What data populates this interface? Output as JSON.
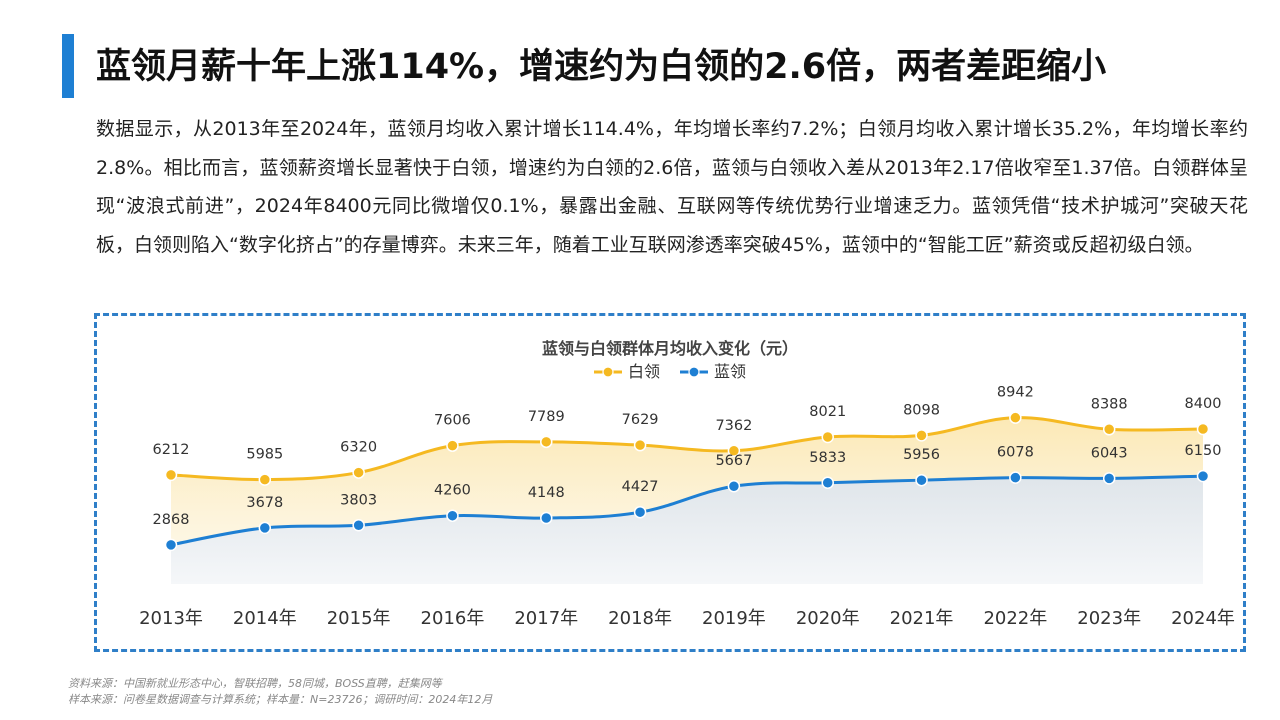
{
  "header": {
    "title": "蓝领月薪十年上涨114%，增速约为白领的2.6倍，两者差距缩小"
  },
  "body": {
    "paragraph": "数据显示，从2013年至2024年，蓝领月均收入累计增长114.4%，年均增长率约7.2%；白领月均收入累计增长35.2%，年均增长率约2.8%。相比而言，蓝领薪资增长显著快于白领，增速约为白领的2.6倍，蓝领与白领收入差从2013年2.17倍收窄至1.37倍。白领群体呈现“波浪式前进”，2024年8400元同比微增仅0.1%，暴露出金融、互联网等传统优势行业增速乏力。蓝领凭借“技术护城河”突破天花板，白领则陷入“数字化挤占”的存量博弈。未来三年，随着工业互联网渗透率突破45%，蓝领中的“智能工匠”薪资或反超初级白领。"
  },
  "chart_data": {
    "type": "line",
    "title": "蓝领与白领群体月均收入变化（元）",
    "categories": [
      "2013年",
      "2014年",
      "2015年",
      "2016年",
      "2017年",
      "2018年",
      "2019年",
      "2020年",
      "2021年",
      "2022年",
      "2023年",
      "2024年"
    ],
    "series": [
      {
        "name": "白领",
        "color": "#f5b921",
        "values": [
          6212,
          5985,
          6320,
          7606,
          7789,
          7629,
          7362,
          8021,
          8098,
          8942,
          8388,
          8400
        ]
      },
      {
        "name": "蓝领",
        "color": "#1e7fd3",
        "values": [
          2868,
          3678,
          3803,
          4260,
          4148,
          4427,
          5667,
          5833,
          5956,
          6078,
          6043,
          6150
        ]
      }
    ],
    "legend": "top-center",
    "area_fill": true,
    "grid": false,
    "y_axis_visible": false,
    "ylim": [
      0,
      11000
    ]
  },
  "footer": {
    "source": "资料来源：中国新就业形态中心，智联招聘，58同城，BOSS直聘，赶集网等",
    "sample": "样本来源：问卷星数据调查与计算系统；样本量：N=23726；调研时间：2024年12月"
  }
}
